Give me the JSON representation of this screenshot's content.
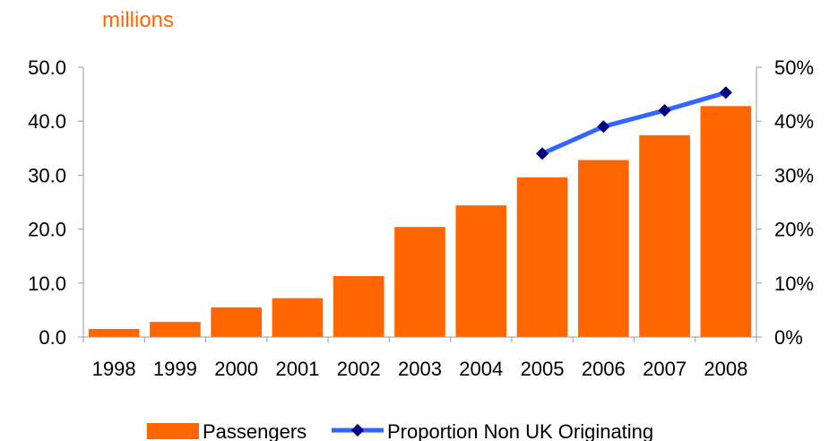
{
  "chart_data": {
    "type": "bar",
    "unit_label": "millions",
    "categories": [
      "1998",
      "1999",
      "2000",
      "2001",
      "2002",
      "2003",
      "2004",
      "2005",
      "2006",
      "2007",
      "2008"
    ],
    "series": [
      {
        "name": "Passengers",
        "type": "bar",
        "axis": "left",
        "values": [
          1.5,
          2.8,
          5.5,
          7.2,
          11.3,
          20.4,
          24.4,
          29.6,
          32.8,
          37.4,
          42.8
        ]
      },
      {
        "name": "Proportion Non UK Originating",
        "type": "line",
        "axis": "right",
        "values": [
          null,
          null,
          null,
          null,
          null,
          null,
          null,
          34,
          39,
          42,
          45.3
        ]
      }
    ],
    "y_left": {
      "min": 0,
      "max": 50,
      "ticks": [
        "0.0",
        "10.0",
        "20.0",
        "30.0",
        "40.0",
        "50.0"
      ]
    },
    "y_right": {
      "min": 0,
      "max": 50,
      "ticks": [
        "0%",
        "10%",
        "20%",
        "30%",
        "40%",
        "50%"
      ]
    },
    "legend_position": "bottom",
    "grid": false,
    "colors": {
      "bar": "#ff6600",
      "line": "#3366ff",
      "marker": "#000080",
      "unit_label": "#ff6600",
      "axis": "#999999"
    }
  }
}
